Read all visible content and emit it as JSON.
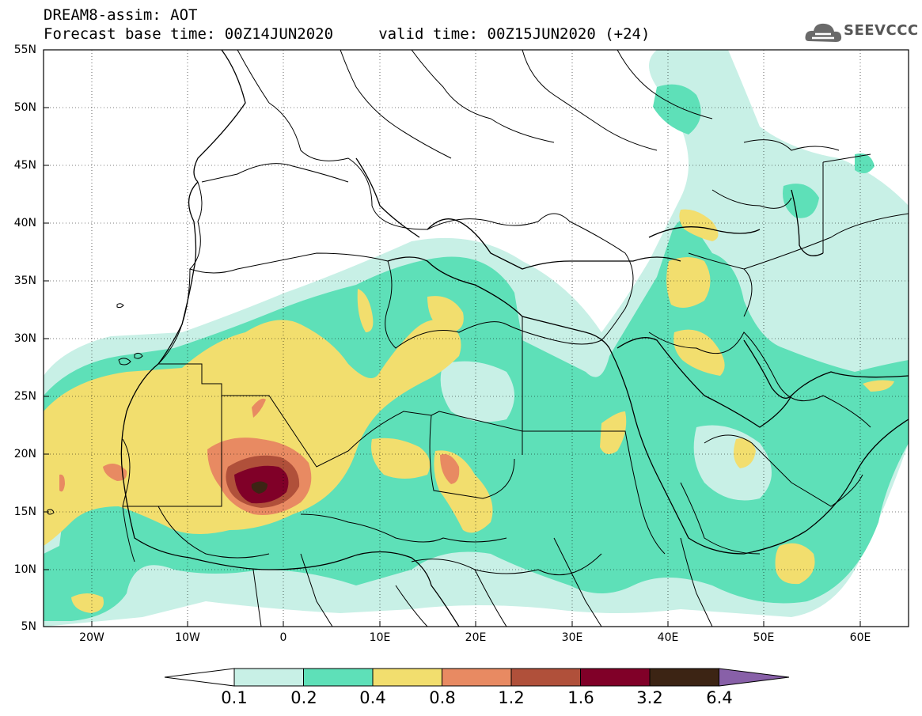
{
  "title": {
    "line1": "DREAM8-assim: AOT",
    "line2": "Forecast base time: 00Z14JUN2020     valid time: 00Z15JUN2020 (+24)"
  },
  "logo": {
    "text": "SEEVCCC",
    "icon": "cloud-icon"
  },
  "map": {
    "projection": "lat-lon",
    "lon_range": [
      -25,
      65
    ],
    "lat_range": [
      5,
      55
    ],
    "lat_ticks": [
      "55N",
      "50N",
      "45N",
      "40N",
      "35N",
      "30N",
      "25N",
      "20N",
      "15N",
      "10N",
      "5N"
    ],
    "lon_ticks": [
      "20W",
      "10W",
      "0",
      "10E",
      "20E",
      "30E",
      "40E",
      "50E",
      "60E"
    ]
  },
  "colorbar": {
    "labels": [
      "0.1",
      "0.2",
      "0.4",
      "0.8",
      "1.2",
      "1.6",
      "3.2",
      "6.4"
    ],
    "colors": [
      "#c8f0e6",
      "#5ee0b8",
      "#f2de6e",
      "#e88a62",
      "#b0503a",
      "#800028",
      "#3c2414",
      "#8860a8"
    ]
  }
}
